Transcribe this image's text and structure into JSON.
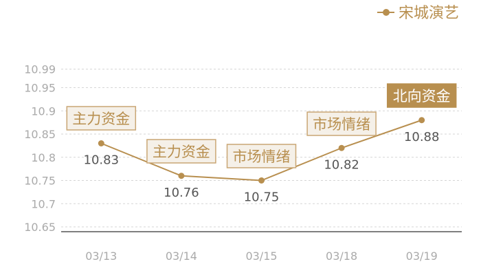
{
  "chart_data": {
    "type": "line",
    "title": "",
    "xlabel": "",
    "ylabel": "",
    "categories": [
      "03/13",
      "03/14",
      "03/15",
      "03/18",
      "03/19"
    ],
    "series": [
      {
        "name": "宋城演艺",
        "values": [
          10.83,
          10.76,
          10.75,
          10.82,
          10.88
        ],
        "color": "#b88f4f"
      }
    ],
    "yticks": [
      "10.65",
      "10.7",
      "10.75",
      "10.8",
      "10.85",
      "10.9",
      "10.95",
      "10.99"
    ],
    "ylim": [
      10.64,
      10.99
    ],
    "grid": true,
    "legend": "top-right",
    "annotations": [
      {
        "category": "03/13",
        "text": "主力资金",
        "style": "outline",
        "position": "above"
      },
      {
        "category": "03/14",
        "text": "主力资金",
        "style": "outline",
        "position": "above"
      },
      {
        "category": "03/15",
        "text": "市场情绪",
        "style": "outline",
        "position": "above"
      },
      {
        "category": "03/18",
        "text": "市场情绪",
        "style": "outline",
        "position": "above"
      },
      {
        "category": "03/19",
        "text": "北向资金",
        "style": "filled",
        "position": "above"
      }
    ]
  }
}
